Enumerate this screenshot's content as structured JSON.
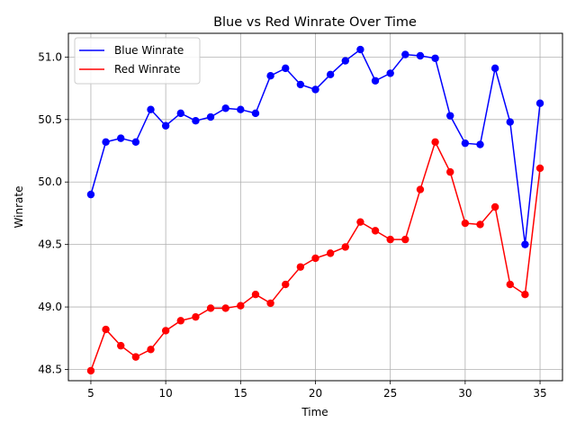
{
  "chart_data": {
    "type": "line",
    "title": "Blue vs Red Winrate Over Time",
    "xlabel": "Time",
    "ylabel": "Winrate",
    "xlim": [
      3.5,
      36.5
    ],
    "ylim": [
      48.41,
      51.19
    ],
    "xticks": [
      5,
      10,
      15,
      20,
      25,
      30,
      35
    ],
    "yticks": [
      48.5,
      49.0,
      49.5,
      50.0,
      50.5,
      51.0
    ],
    "ytick_labels": [
      "48.5",
      "49.0",
      "49.5",
      "50.0",
      "50.5",
      "51.0"
    ],
    "grid": true,
    "legend_position": "upper-left",
    "x": [
      5,
      6,
      7,
      8,
      9,
      10,
      11,
      12,
      13,
      14,
      15,
      16,
      17,
      18,
      19,
      20,
      21,
      22,
      23,
      24,
      25,
      26,
      27,
      28,
      29,
      30,
      31,
      32,
      33,
      34,
      35
    ],
    "series": [
      {
        "name": "Blue Winrate",
        "color": "#0000ff",
        "values": [
          49.9,
          50.32,
          50.35,
          50.32,
          50.58,
          50.45,
          50.55,
          50.49,
          50.52,
          50.59,
          50.58,
          50.55,
          50.85,
          50.91,
          50.78,
          50.74,
          50.86,
          50.97,
          51.06,
          50.81,
          50.87,
          51.02,
          51.01,
          50.99,
          50.53,
          50.31,
          50.3,
          50.91,
          50.48,
          49.5,
          50.63
        ]
      },
      {
        "name": "Red Winrate",
        "color": "#ff0000",
        "values": [
          48.49,
          48.82,
          48.69,
          48.6,
          48.66,
          48.81,
          48.89,
          48.92,
          48.99,
          48.99,
          49.01,
          49.1,
          49.03,
          49.18,
          49.32,
          49.39,
          49.43,
          49.48,
          49.68,
          49.61,
          49.54,
          49.54,
          49.94,
          50.32,
          50.08,
          49.67,
          49.66,
          49.8,
          49.18,
          49.1,
          50.11
        ]
      }
    ]
  }
}
